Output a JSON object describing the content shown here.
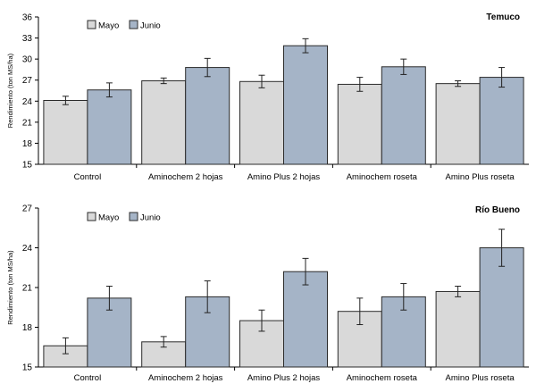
{
  "chart_data": [
    {
      "type": "bar",
      "title": "Temuco",
      "ylabel": "Rendimiento (ton MS/ha)",
      "ylim": [
        15,
        36
      ],
      "yticks": [
        15,
        18,
        21,
        24,
        27,
        30,
        33,
        36
      ],
      "categories": [
        "Control",
        "Aminochem 2 hojas",
        "Amino Plus 2 hojas",
        "Aminochem roseta",
        "Amino Plus roseta"
      ],
      "series": [
        {
          "name": "Mayo",
          "color": "#d9d9d9",
          "values": [
            24.1,
            26.9,
            26.8,
            26.4,
            26.5
          ],
          "errors": [
            0.6,
            0.4,
            0.9,
            1.0,
            0.4
          ]
        },
        {
          "name": "Junio",
          "color": "#a5b4c7",
          "values": [
            25.6,
            28.8,
            31.9,
            28.9,
            27.4
          ],
          "errors": [
            1.0,
            1.3,
            1.0,
            1.1,
            1.4
          ]
        }
      ],
      "legend": "top-left",
      "grid": false
    },
    {
      "type": "bar",
      "title": "Río Bueno",
      "ylabel": "Rendimiento (ton MS/ha)",
      "ylim": [
        15,
        27
      ],
      "yticks": [
        15,
        18,
        21,
        24,
        27
      ],
      "categories": [
        "Control",
        "Aminochem 2 hojas",
        "Amino Plus 2 hojas",
        "Aminochem roseta",
        "Amino Plus roseta"
      ],
      "series": [
        {
          "name": "Mayo",
          "color": "#d9d9d9",
          "values": [
            16.6,
            16.9,
            18.5,
            19.2,
            20.7
          ],
          "errors": [
            0.6,
            0.4,
            0.8,
            1.0,
            0.4
          ]
        },
        {
          "name": "Junio",
          "color": "#a5b4c7",
          "values": [
            20.2,
            20.3,
            22.2,
            20.3,
            24.0
          ],
          "errors": [
            0.9,
            1.2,
            1.0,
            1.0,
            1.4
          ]
        }
      ],
      "legend": "top-left",
      "grid": false
    }
  ]
}
